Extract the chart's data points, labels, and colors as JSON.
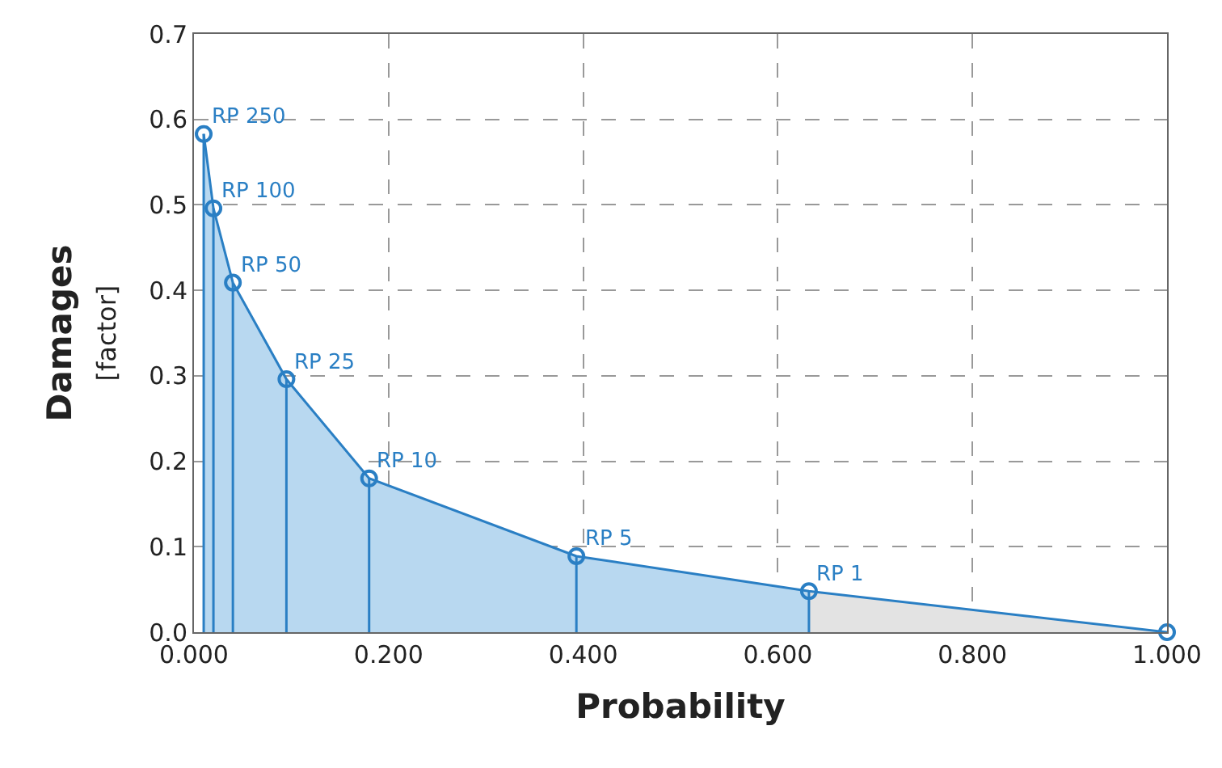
{
  "chart_data": {
    "type": "line",
    "xlabel": "Probability",
    "ylabel": "Damages",
    "subtitle": "[factor]",
    "xlim": [
      0,
      1
    ],
    "ylim": [
      0,
      0.7
    ],
    "xticks": [
      {
        "value": 0,
        "label": "0.000"
      },
      {
        "value": 0.2,
        "label": "0.200"
      },
      {
        "value": 0.4,
        "label": "0.400"
      },
      {
        "value": 0.6,
        "label": "0.600"
      },
      {
        "value": 0.8,
        "label": "0.800"
      },
      {
        "value": 1,
        "label": "1.000"
      }
    ],
    "yticks": [
      {
        "value": 0,
        "label": "0.0"
      },
      0.1,
      0.2,
      0.3,
      0.4,
      0.5,
      0.6,
      0.7
    ],
    "grid": true,
    "series": [
      {
        "type": "area",
        "color": "#b8d8f0",
        "x": [
          0.01,
          0.02,
          0.04,
          0.095,
          0.18,
          0.393,
          0.632
        ],
        "values": [
          0.583,
          0.496,
          0.409,
          0.296,
          0.18,
          0.089,
          0.048
        ]
      },
      {
        "type": "area",
        "color": "#e3e3e3",
        "x": [
          0.632,
          1.0
        ],
        "values": [
          0.048,
          0
        ]
      },
      {
        "type": "lollipop",
        "color": "#2a7fc4",
        "marker": "circle",
        "x": [
          0.01,
          0.02,
          0.04,
          0.095,
          0.18,
          0.393,
          0.632,
          1.0
        ],
        "values": [
          0.583,
          0.496,
          0.409,
          0.296,
          0.18,
          0.089,
          0.048,
          0
        ]
      },
      {
        "color": "#2a7fc4",
        "marker": "none",
        "x": [
          0.01,
          0.02,
          0.04,
          0.095,
          0.18,
          0.393,
          0.632,
          1.0
        ],
        "values": [
          0.583,
          0.496,
          0.409,
          0.296,
          0.18,
          0.089,
          0.048,
          0
        ]
      }
    ],
    "annotations": [
      {
        "text": "RP 250",
        "x": 0.01,
        "y": 0.583
      },
      {
        "text": "RP 100",
        "x": 0.02,
        "y": 0.496
      },
      {
        "text": "RP 50",
        "x": 0.04,
        "y": 0.409
      },
      {
        "text": "RP 25",
        "x": 0.095,
        "y": 0.296
      },
      {
        "text": "RP 10",
        "x": 0.18,
        "y": 0.18
      },
      {
        "text": "RP 5",
        "x": 0.393,
        "y": 0.089
      },
      {
        "text": "RP 1",
        "x": 0.632,
        "y": 0.048
      }
    ]
  }
}
